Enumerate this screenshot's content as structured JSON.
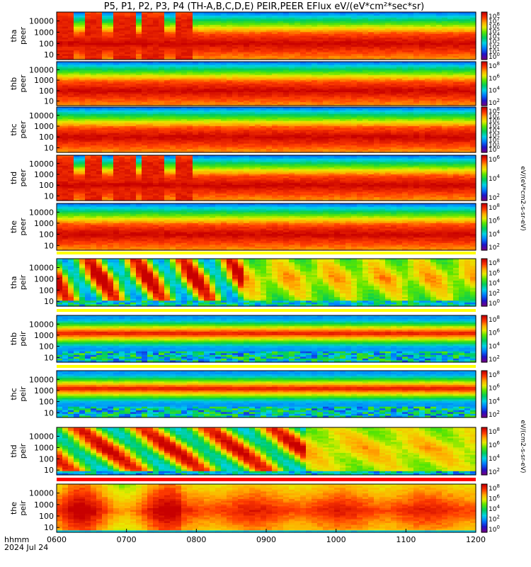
{
  "title": "P5, P1, P2, P3, P4 (TH-A,B,C,D,E) PEIR,PEER EFlux eV/(eV*cm²*sec*sr)",
  "footer": {
    "time_label": "hhmm",
    "date": "2024 Jul 24"
  },
  "colorbar_label_top": "eV/(eV*cm2-s-sr-eV)",
  "colorbar_label_bottom": "eV/(cm2-s-sr-eV)",
  "chart_data": {
    "type": "heatmap",
    "x_ticks": [
      "0600",
      "0700",
      "0800",
      "0900",
      "1000",
      "1100",
      "1200"
    ],
    "y_ticks": [
      "10",
      "100",
      "1000",
      "10000"
    ],
    "y_scale": "log",
    "panels": [
      {
        "name": "tha peer",
        "label1": "tha",
        "label2": "peer",
        "profile": "e_active",
        "cb_ticks": [
          "10^8",
          "10^7",
          "10^6",
          "10^5",
          "10^4",
          "10^3",
          "10^2",
          "10^1",
          "10^0"
        ]
      },
      {
        "name": "thb peer",
        "label1": "thb",
        "label2": "peer",
        "profile": "e_quiet",
        "cb_ticks": [
          "10^8",
          "10^6",
          "10^4",
          "10^2"
        ]
      },
      {
        "name": "thc peer",
        "label1": "thc",
        "label2": "peer",
        "profile": "e_quiet",
        "cb_ticks": [
          "10^8",
          "10^7",
          "10^6",
          "10^5",
          "10^4",
          "10^3",
          "10^2",
          "10^1",
          "10^0"
        ]
      },
      {
        "name": "thd peer",
        "label1": "thd",
        "label2": "peer",
        "profile": "e_active",
        "cb_ticks": [
          "10^6",
          "10^4",
          "10^2"
        ]
      },
      {
        "name": "the peer",
        "label1": "the",
        "label2": "peer",
        "profile": "e_quiet",
        "cb_ticks": [
          "10^8",
          "10^6",
          "10^4",
          "10^2"
        ]
      },
      {
        "name": "tha peir",
        "label1": "tha",
        "label2": "peir",
        "profile": "i_active",
        "cb_ticks": [
          "10^8",
          "10^6",
          "10^4",
          "10^2",
          "10^0"
        ]
      },
      {
        "name": "thb peir",
        "label1": "thb",
        "label2": "peir",
        "profile": "i_quiet",
        "cb_ticks": [
          "10^8",
          "10^6",
          "10^4",
          "10^2"
        ]
      },
      {
        "name": "thc peir",
        "label1": "thc",
        "label2": "peir",
        "profile": "i_quiet",
        "cb_ticks": [
          "10^8",
          "10^6",
          "10^4",
          "10^2"
        ]
      },
      {
        "name": "thd peir",
        "label1": "thd",
        "label2": "peir",
        "profile": "i_active2",
        "cb_ticks": [
          "10^8",
          "10^6",
          "10^4",
          "10^2"
        ]
      },
      {
        "name": "the peir",
        "label1": "the",
        "label2": "peir",
        "profile": "i_dense",
        "cb_ticks": [
          "10^8",
          "10^6",
          "10^4",
          "10^2",
          "10^0"
        ]
      }
    ]
  }
}
